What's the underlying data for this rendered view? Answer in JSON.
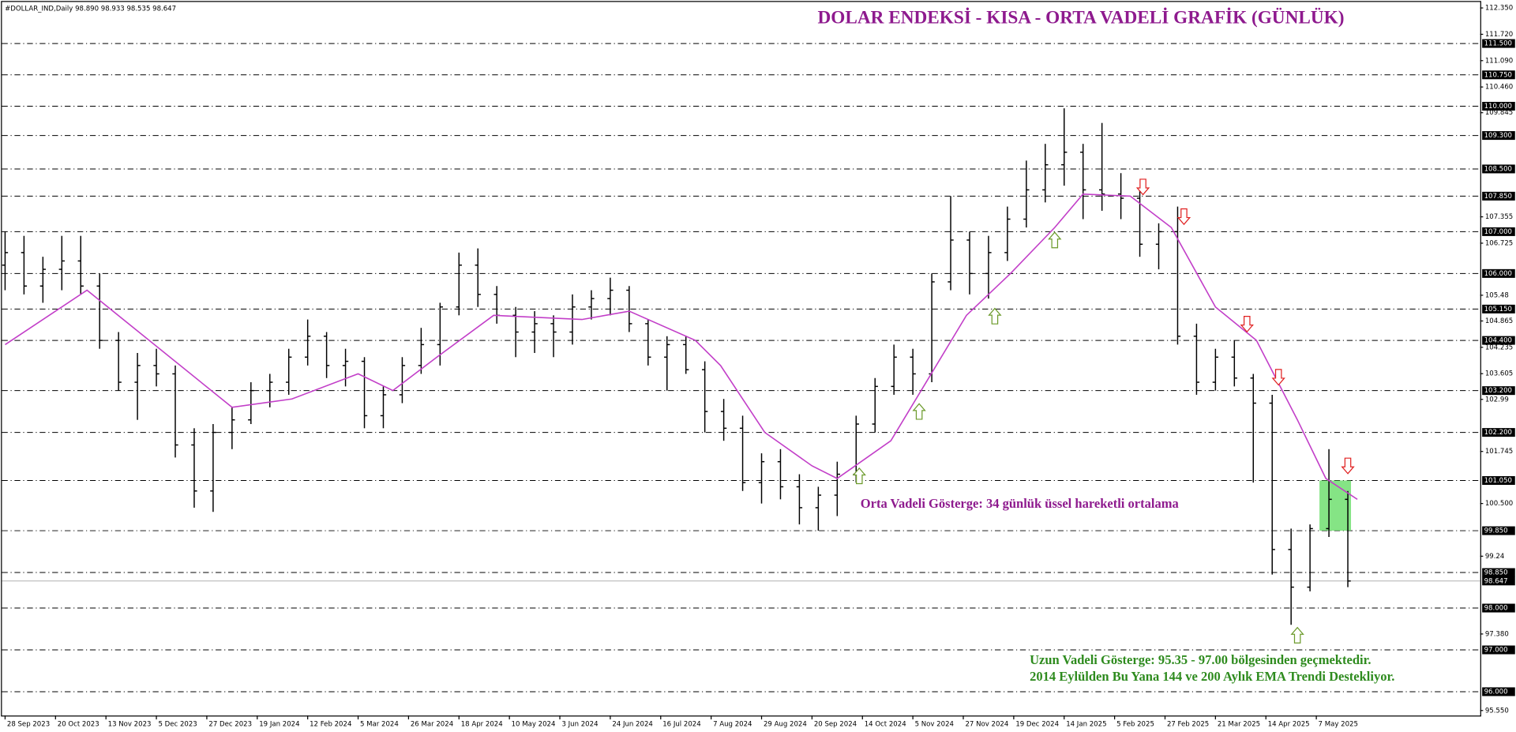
{
  "chart_data": {
    "type": "ohlc",
    "header": "#DOLLAR_IND,Daily  98.890 98.933 98.535 98.647",
    "title": "DOLAR ENDEKSİ - KISA - ORTA VADELİ GRAFİK (GÜNLÜK)",
    "ma_note": "Orta Vadeli Gösterge: 34 günlük üssel hareketli ortalama",
    "long_note": [
      "Uzun Vadeli Gösterge: 95.35 - 97.00 bölgesinden geçmektedir.",
      "2014 Eylülden Bu Yana 144 ve 200 Aylık EMA Trendi Destekliyor."
    ],
    "ma_note_color": "#8e1a8e",
    "long_note_color": "#2e8b1e",
    "color": "#000000",
    "x": [
      0,
      6,
      12,
      18,
      24,
      30,
      36,
      42,
      48,
      54,
      60,
      66,
      72,
      78,
      84,
      90,
      96,
      102,
      108,
      114,
      120,
      126,
      132,
      138,
      144,
      150,
      156,
      162,
      168,
      174,
      180,
      186,
      192,
      198,
      204,
      210,
      216,
      222,
      228,
      234,
      240,
      246,
      252,
      258,
      264,
      270,
      276,
      282,
      288,
      294,
      300,
      306,
      312,
      318,
      324,
      330,
      336,
      342,
      348,
      354,
      360,
      366,
      372,
      378,
      384,
      390,
      396,
      402,
      408,
      414,
      420,
      426
    ],
    "open": [
      106.2,
      106.5,
      105.7,
      106.1,
      106.3,
      105.7,
      104.4,
      103.4,
      103.8,
      103.6,
      101.9,
      100.8,
      102.2,
      102.5,
      103.2,
      103.4,
      104.0,
      104.5,
      103.8,
      103.9,
      102.6,
      103.1,
      103.8,
      104.3,
      105.2,
      106.2,
      105.5,
      105.0,
      104.6,
      104.8,
      104.6,
      105.2,
      105.4,
      105.6,
      104.8,
      104.0,
      104.3,
      103.7,
      102.7,
      102.3,
      101.0,
      101.5,
      100.9,
      100.4,
      100.7,
      101.2,
      102.4,
      103.3,
      104.0,
      103.6,
      105.8,
      106.8,
      106.0,
      106.5,
      107.3,
      108.0,
      108.6,
      108.9,
      108.0,
      107.9,
      107.8,
      106.7,
      107.0,
      104.5,
      103.4,
      104.0,
      103.5,
      102.9,
      99.4,
      98.5,
      99.9,
      100.6
    ],
    "high": [
      107.0,
      106.9,
      106.4,
      106.9,
      106.9,
      106.0,
      104.6,
      104.1,
      104.2,
      103.8,
      102.3,
      102.4,
      102.8,
      103.4,
      103.6,
      104.2,
      104.9,
      104.6,
      104.2,
      104.0,
      103.3,
      104.0,
      104.7,
      105.3,
      106.5,
      106.6,
      105.7,
      105.2,
      105.1,
      105.0,
      105.5,
      105.6,
      105.9,
      105.7,
      104.9,
      104.5,
      104.5,
      103.9,
      103.0,
      102.6,
      101.7,
      101.8,
      101.2,
      100.9,
      101.5,
      102.6,
      103.5,
      104.3,
      104.2,
      106.0,
      107.85,
      107.0,
      106.9,
      107.6,
      108.7,
      109.1,
      109.95,
      109.1,
      109.6,
      108.4,
      108.0,
      107.2,
      107.6,
      104.8,
      104.2,
      104.4,
      103.6,
      103.1,
      99.9,
      100.0,
      101.8,
      100.8
    ],
    "low": [
      105.6,
      105.5,
      105.3,
      105.6,
      105.5,
      104.2,
      103.2,
      102.5,
      103.3,
      101.6,
      100.4,
      100.3,
      101.8,
      102.4,
      102.8,
      103.1,
      103.8,
      103.5,
      103.3,
      102.3,
      102.3,
      102.9,
      103.6,
      103.8,
      105.0,
      105.2,
      104.8,
      104.0,
      104.1,
      104.0,
      104.3,
      104.9,
      105.0,
      104.6,
      103.8,
      103.2,
      103.6,
      102.2,
      102.0,
      100.8,
      100.5,
      100.6,
      100.0,
      99.85,
      100.2,
      101.0,
      102.2,
      103.1,
      103.1,
      103.4,
      105.6,
      105.5,
      105.4,
      106.3,
      107.1,
      107.7,
      108.1,
      107.3,
      107.5,
      107.3,
      106.4,
      106.1,
      104.3,
      103.1,
      103.2,
      103.3,
      101.0,
      98.8,
      97.6,
      98.4,
      99.7,
      98.5
    ],
    "close": [
      106.5,
      105.7,
      106.1,
      106.3,
      105.7,
      104.4,
      103.4,
      103.8,
      103.6,
      101.9,
      100.8,
      102.2,
      102.5,
      103.2,
      103.4,
      104.0,
      104.5,
      103.8,
      103.9,
      102.6,
      103.1,
      103.8,
      104.3,
      105.2,
      106.2,
      105.5,
      105.0,
      104.6,
      104.8,
      104.6,
      105.2,
      105.4,
      105.6,
      104.8,
      104.0,
      104.3,
      103.7,
      102.7,
      102.3,
      101.0,
      101.5,
      100.9,
      100.4,
      100.7,
      101.2,
      102.4,
      103.3,
      104.0,
      103.6,
      105.8,
      106.8,
      106.0,
      106.5,
      107.3,
      108.0,
      108.6,
      108.9,
      108.0,
      107.9,
      107.8,
      106.7,
      107.0,
      104.5,
      103.4,
      104.0,
      103.5,
      102.9,
      99.4,
      98.5,
      99.9,
      100.6,
      98.647
    ],
    "ema": {
      "color": "#c23ec8",
      "x": [
        0,
        26,
        72,
        91,
        112,
        123,
        137,
        155,
        183,
        198,
        219,
        227,
        241,
        256,
        264,
        281,
        293,
        305,
        319,
        333,
        342,
        357,
        370,
        384,
        397,
        410,
        419,
        429
      ],
      "values": [
        104.3,
        105.6,
        102.8,
        103.0,
        103.6,
        103.2,
        104.0,
        105.0,
        104.9,
        105.1,
        104.4,
        103.8,
        102.2,
        101.4,
        101.1,
        102.0,
        103.5,
        105.0,
        106.0,
        107.1,
        107.9,
        107.85,
        107.1,
        105.2,
        104.4,
        102.5,
        101.1,
        100.6
      ]
    },
    "xlim": [
      -1,
      468
    ],
    "ylim": [
      95.43,
      112.47
    ],
    "xticks": [
      {
        "value": 0,
        "label": "28 Sep 2023"
      },
      {
        "value": 16,
        "label": "20 Oct 2023"
      },
      {
        "value": 32,
        "label": "13 Nov 2023"
      },
      {
        "value": 48,
        "label": "5 Dec 2023"
      },
      {
        "value": 64,
        "label": "27 Dec 2023"
      },
      {
        "value": 80,
        "label": "19 Jan 2024"
      },
      {
        "value": 96,
        "label": "12 Feb 2024"
      },
      {
        "value": 112,
        "label": "5 Mar 2024"
      },
      {
        "value": 128,
        "label": "26 Mar 2024"
      },
      {
        "value": 144,
        "label": "18 Apr 2024"
      },
      {
        "value": 160,
        "label": "10 May 2024"
      },
      {
        "value": 176,
        "label": "3 Jun 2024"
      },
      {
        "value": 192,
        "label": "24 Jun 2024"
      },
      {
        "value": 208,
        "label": "16 Jul 2024"
      },
      {
        "value": 224,
        "label": "7 Aug 2024"
      },
      {
        "value": 240,
        "label": "29 Aug 2024"
      },
      {
        "value": 256,
        "label": "20 Sep 2024"
      },
      {
        "value": 272,
        "label": "14 Oct 2024"
      },
      {
        "value": 288,
        "label": "5 Nov 2024"
      },
      {
        "value": 304,
        "label": "27 Nov 2024"
      },
      {
        "value": 320,
        "label": "19 Dec 2024"
      },
      {
        "value": 336,
        "label": "14 Jan 2025"
      },
      {
        "value": 352,
        "label": "5 Feb 2025"
      },
      {
        "value": 368,
        "label": "27 Feb 2025"
      },
      {
        "value": 384,
        "label": "21 Mar 2025"
      },
      {
        "value": 400,
        "label": "14 Apr 2025"
      },
      {
        "value": 416,
        "label": "7 May 2025"
      }
    ],
    "yticks": [
      {
        "value": 112.35,
        "label": "112.350"
      },
      {
        "value": 111.72,
        "label": "111.720"
      },
      {
        "value": 111.09,
        "label": "111.090"
      },
      {
        "value": 110.46,
        "label": "110.460"
      },
      109.845,
      107.355,
      106.725,
      105.48,
      104.865,
      104.235,
      103.605,
      102.99,
      101.745,
      {
        "value": 100.5,
        "label": "100.500"
      },
      99.24,
      {
        "value": 97.38,
        "label": "97.380"
      },
      {
        "value": 95.55,
        "label": "95.550"
      }
    ],
    "levels": [
      {
        "value": 111.5,
        "label": "111.500"
      },
      {
        "value": 110.75,
        "label": "110.750"
      },
      {
        "value": 110,
        "label": "110.000"
      },
      {
        "value": 109.3,
        "label": "109.300"
      },
      {
        "value": 108.5,
        "label": "108.500"
      },
      {
        "value": 107.85,
        "label": "107.850"
      },
      {
        "value": 107,
        "label": "107.000"
      },
      {
        "value": 106,
        "label": "106.000"
      },
      {
        "value": 105.15,
        "label": "105.150"
      },
      {
        "value": 104.4,
        "label": "104.400"
      },
      {
        "value": 103.2,
        "label": "103.200"
      },
      {
        "value": 102.2,
        "label": "102.200"
      },
      {
        "value": 101.05,
        "label": "101.050"
      },
      {
        "value": 99.85,
        "label": "99.850"
      },
      {
        "value": 98.85,
        "label": "98.850"
      },
      {
        "value": 98,
        "label": "98.000"
      },
      {
        "value": 97,
        "label": "97.000"
      },
      {
        "value": 96,
        "label": "96.000"
      }
    ],
    "current": 98.647,
    "arrows": [
      {
        "x": 271,
        "y": 101.16,
        "dir": "up"
      },
      {
        "x": 290,
        "y": 102.7,
        "dir": "up"
      },
      {
        "x": 314,
        "y": 104.98,
        "dir": "up"
      },
      {
        "x": 333,
        "y": 106.8,
        "dir": "up"
      },
      {
        "x": 410,
        "y": 97.35,
        "dir": "up"
      },
      {
        "x": 361,
        "y": 108.07,
        "dir": "down"
      },
      {
        "x": 374,
        "y": 107.36,
        "dir": "down"
      },
      {
        "x": 394,
        "y": 104.79,
        "dir": "down"
      },
      {
        "x": 404,
        "y": 103.52,
        "dir": "down"
      },
      {
        "x": 426,
        "y": 101.4,
        "dir": "down"
      }
    ],
    "arrow_colors": {
      "up": "#6b9a2a",
      "down": "#e02020"
    },
    "highlight": {
      "x": [
        417,
        427
      ],
      "y": [
        99.85,
        101.05
      ],
      "color": "#66dd66"
    }
  }
}
